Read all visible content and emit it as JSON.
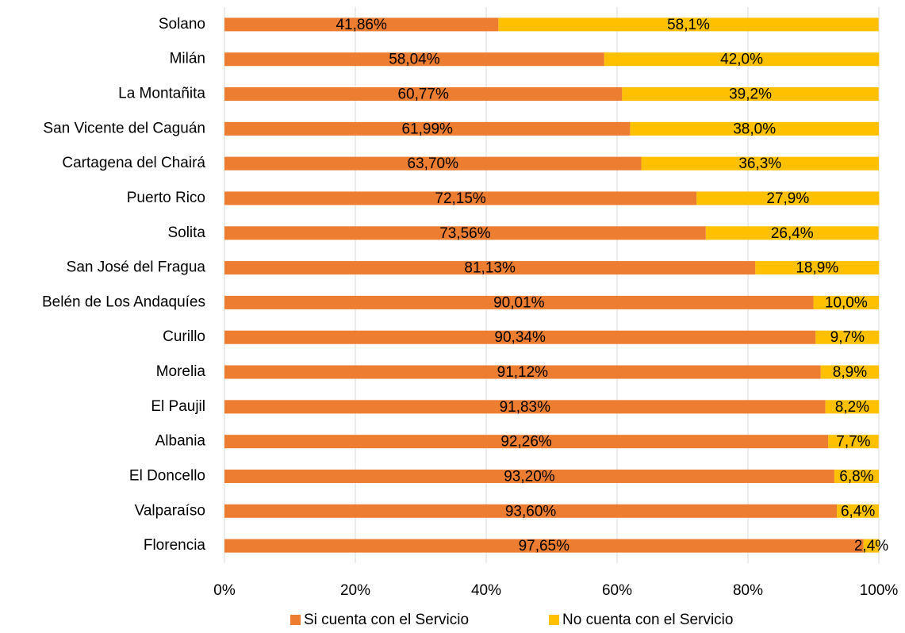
{
  "chart_data": {
    "type": "stacked_bar_horizontal",
    "categories": [
      "Solano",
      "Milán",
      "La Montañita",
      "San Vicente del Caguán",
      "Cartagena del Chairá",
      "Puerto Rico",
      "Solita",
      "San José del Fragua",
      "Belén de Los Andaquíes",
      "Curillo",
      "Morelia",
      "El Paujil",
      "Albania",
      "El Doncello",
      "Valparaíso",
      "Florencia"
    ],
    "series": [
      {
        "name": "Si cuenta con el Servicio",
        "color": "#ED7D31",
        "values": [
          41.86,
          58.04,
          60.77,
          61.99,
          63.7,
          72.15,
          73.56,
          81.13,
          90.01,
          90.34,
          91.12,
          91.83,
          92.26,
          93.2,
          93.6,
          97.65
        ],
        "value_labels": [
          "41,86%",
          "58,04%",
          "60,77%",
          "61,99%",
          "63,70%",
          "72,15%",
          "73,56%",
          "81,13%",
          "90,01%",
          "90,34%",
          "91,12%",
          "91,83%",
          "92,26%",
          "93,20%",
          "93,60%",
          "97,65%"
        ]
      },
      {
        "name": "No cuenta con el Servicio",
        "color": "#FFC000",
        "values": [
          58.1,
          42.0,
          39.2,
          38.0,
          36.3,
          27.9,
          26.4,
          18.9,
          10.0,
          9.7,
          8.9,
          8.2,
          7.7,
          6.8,
          6.4,
          2.4
        ],
        "value_labels": [
          "58,1%",
          "42,0%",
          "39,2%",
          "38,0%",
          "36,3%",
          "27,9%",
          "26,4%",
          "18,9%",
          "10,0%",
          "9,7%",
          "8,9%",
          "8,2%",
          "7,7%",
          "6,8%",
          "6,4%",
          "2,4%"
        ]
      }
    ],
    "xlim": [
      0,
      100
    ],
    "xticks": [
      {
        "value": 0,
        "label": "0%"
      },
      {
        "value": 20,
        "label": "20%"
      },
      {
        "value": 40,
        "label": "40%"
      },
      {
        "value": 60,
        "label": "60%"
      },
      {
        "value": 80,
        "label": "80%"
      },
      {
        "value": 100,
        "label": "100%"
      }
    ],
    "grid": true,
    "legend": "bottom"
  }
}
